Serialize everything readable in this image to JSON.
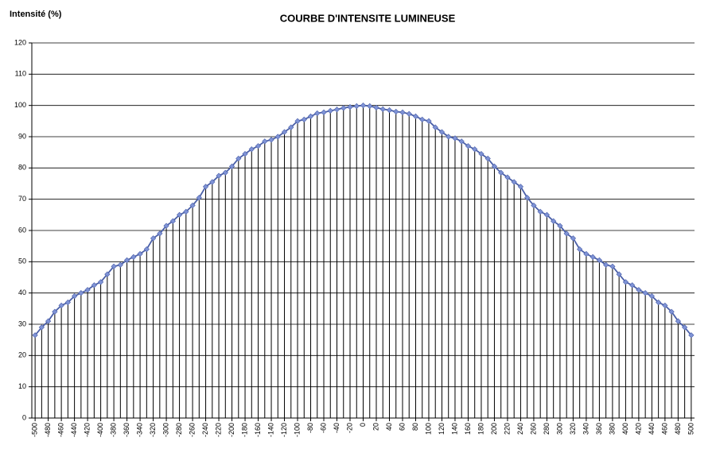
{
  "chart_data": {
    "type": "line",
    "title": "COURBE D'INTENSITE LUMINEUSE",
    "y_label": "Intensité (%)",
    "x": [
      -500,
      -490,
      -480,
      -470,
      -460,
      -450,
      -440,
      -430,
      -420,
      -410,
      -400,
      -390,
      -380,
      -370,
      -360,
      -350,
      -340,
      -330,
      -320,
      -310,
      -300,
      -290,
      -280,
      -270,
      -260,
      -250,
      -240,
      -230,
      -220,
      -210,
      -200,
      -190,
      -180,
      -170,
      -160,
      -150,
      -140,
      -130,
      -120,
      -110,
      -100,
      -90,
      -80,
      -70,
      -60,
      -50,
      -40,
      -30,
      -20,
      -10,
      0,
      10,
      20,
      30,
      40,
      50,
      60,
      70,
      80,
      90,
      100,
      110,
      120,
      130,
      140,
      150,
      160,
      170,
      180,
      190,
      200,
      210,
      220,
      230,
      240,
      250,
      260,
      270,
      280,
      290,
      300,
      310,
      320,
      330,
      340,
      350,
      360,
      370,
      380,
      390,
      400,
      410,
      420,
      430,
      440,
      450,
      460,
      470,
      480,
      490,
      500
    ],
    "values": [
      26.5,
      29,
      31,
      34,
      36,
      37,
      39,
      40,
      41,
      42.5,
      43.5,
      46,
      48.5,
      49,
      50.5,
      51.5,
      52.5,
      54,
      57.5,
      59,
      61.5,
      63,
      65,
      66,
      68,
      70.5,
      74,
      75.5,
      77.5,
      78.5,
      80.5,
      83,
      84.5,
      86,
      87,
      88.5,
      89,
      90,
      91.5,
      93,
      95,
      95.5,
      96.5,
      97.5,
      97.8,
      98.3,
      98.7,
      99.2,
      99.5,
      99.8,
      100,
      99.8,
      99.3,
      98.8,
      98.5,
      98,
      97.8,
      97.3,
      96.5,
      95.5,
      95,
      93,
      91.5,
      90,
      89.5,
      88.5,
      87,
      86,
      84.5,
      83,
      80.5,
      78.5,
      77,
      75.5,
      74,
      70.5,
      68,
      66,
      65,
      63,
      61.5,
      59,
      57.5,
      54,
      52.5,
      51.5,
      50.5,
      49,
      48.5,
      46,
      43.5,
      42.5,
      41,
      40,
      39,
      37,
      36,
      34,
      31,
      29,
      26.5
    ],
    "color": "#4a5fa8",
    "marker_color": "#7f93d6",
    "drop_line_color": "#000000",
    "xlim": [
      -505,
      505
    ],
    "xticks": [
      -500,
      -480,
      -460,
      -440,
      -420,
      -400,
      -380,
      -360,
      -340,
      -320,
      -300,
      -280,
      -260,
      -240,
      -220,
      -200,
      -180,
      -160,
      -140,
      -120,
      -100,
      -80,
      -60,
      -40,
      -20,
      0,
      20,
      40,
      60,
      80,
      100,
      120,
      140,
      160,
      180,
      200,
      220,
      240,
      260,
      280,
      300,
      320,
      340,
      360,
      380,
      400,
      420,
      440,
      460,
      480,
      500
    ],
    "ylim": [
      0,
      120
    ],
    "yticks": [
      0,
      10,
      20,
      30,
      40,
      50,
      60,
      70,
      80,
      90,
      100,
      110,
      120
    ],
    "grid": true
  }
}
